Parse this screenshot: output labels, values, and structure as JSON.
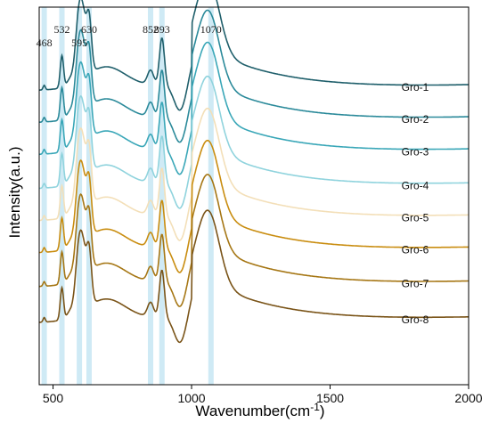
{
  "chart_data": {
    "type": "line",
    "title": "",
    "xlabel": "Wavenumber(cm",
    "xlabel_sup": "-1",
    "xlabel_close": ")",
    "ylabel": "Intensity(a.u.)",
    "xlim": [
      450,
      2000
    ],
    "x_ticks": [
      500,
      1000,
      1500,
      2000
    ],
    "x_tick_labels": [
      "500",
      "1000",
      "1500",
      "2000"
    ],
    "grid": false,
    "highlight_bands": [
      468,
      532,
      595,
      630,
      852,
      893,
      1070
    ],
    "peak_labels": [
      {
        "x": 468,
        "text": "468",
        "row": "low"
      },
      {
        "x": 532,
        "text": "532",
        "row": "high"
      },
      {
        "x": 595,
        "text": "595",
        "row": "low"
      },
      {
        "x": 630,
        "text": "630",
        "row": "high"
      },
      {
        "x": 852,
        "text": "852",
        "row": "high"
      },
      {
        "x": 893,
        "text": "893",
        "row": "high"
      },
      {
        "x": 1070,
        "text": "1070",
        "row": "high"
      }
    ],
    "series": [
      {
        "name": "Gro-1",
        "color": "#1f5f6b",
        "baseline_at_2000": 0.825
      },
      {
        "name": "Gro-2",
        "color": "#2b8a9a",
        "baseline_at_2000": 0.74
      },
      {
        "name": "Gro-3",
        "color": "#3aa7b8",
        "baseline_at_2000": 0.655
      },
      {
        "name": "Gro-4",
        "color": "#8fd3dd",
        "baseline_at_2000": 0.565
      },
      {
        "name": "Gro-5",
        "color": "#f3dfb8",
        "baseline_at_2000": 0.48
      },
      {
        "name": "Gro-6",
        "color": "#c98d10",
        "baseline_at_2000": 0.395
      },
      {
        "name": "Gro-7",
        "color": "#a67715",
        "baseline_at_2000": 0.305
      },
      {
        "name": "Gro-8",
        "color": "#7a5418",
        "baseline_at_2000": 0.21
      }
    ]
  }
}
